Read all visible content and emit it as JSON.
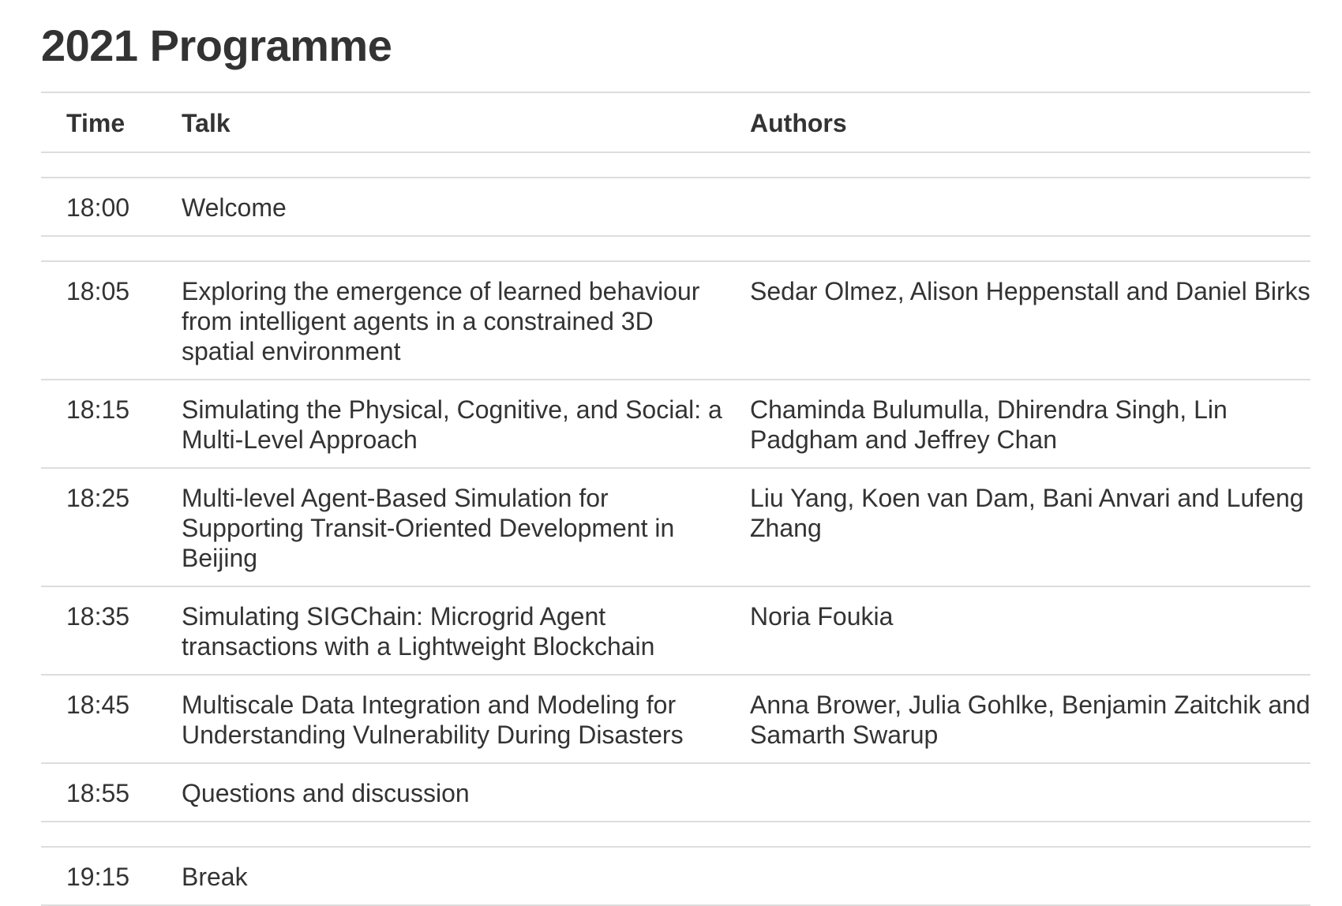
{
  "page": {
    "title": "2021 Programme"
  },
  "table": {
    "headers": {
      "time": "Time",
      "talk": "Talk",
      "authors": "Authors"
    },
    "rows": [
      {
        "spacer": true
      },
      {
        "time": "18:00",
        "talk": "Welcome",
        "authors": ""
      },
      {
        "spacer": true
      },
      {
        "time": "18:05",
        "talk": "Exploring the emergence of learned behaviour from intelligent agents in a constrained 3D spatial environment",
        "authors": "Sedar Olmez, Alison Heppenstall and Daniel Birks"
      },
      {
        "time": "18:15",
        "talk": "Simulating the Physical, Cognitive, and Social: a Multi-Level Approach",
        "authors": "Chaminda Bulumulla, Dhirendra Singh, Lin Padgham and Jeffrey Chan"
      },
      {
        "time": "18:25",
        "talk": "Multi-level Agent-Based Simulation for Supporting Transit-Oriented Development in Beijing",
        "authors": "Liu Yang, Koen van Dam, Bani Anvari and Lufeng Zhang"
      },
      {
        "time": "18:35",
        "talk": "Simulating SIGChain: Microgrid Agent transactions with a Lightweight Blockchain",
        "authors": "Noria Foukia"
      },
      {
        "time": "18:45",
        "talk": "Multiscale Data Integration and Modeling for Understanding Vulnerability During Disasters",
        "authors": "Anna Brower, Julia Gohlke, Benjamin Zaitchik and Samarth Swarup"
      },
      {
        "time": "18:55",
        "talk": "Questions and discussion",
        "authors": ""
      },
      {
        "spacer": true
      },
      {
        "time": "19:15",
        "talk": "Break",
        "authors": ""
      }
    ]
  }
}
